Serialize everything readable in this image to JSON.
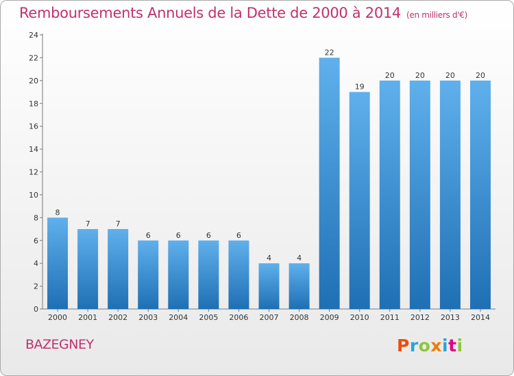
{
  "title": "Remboursements Annuels de la Dette de 2000 à 2014",
  "subtitle": "(en milliers d'€)",
  "place": "BAZEGNEY",
  "logo_text": "Proxiti",
  "chart_data": {
    "type": "bar",
    "title": "Remboursements Annuels de la Dette de 2000 à 2014",
    "subtitle": "(en milliers d'€)",
    "categories": [
      "2000",
      "2001",
      "2002",
      "2003",
      "2004",
      "2005",
      "2006",
      "2007",
      "2008",
      "2009",
      "2010",
      "2011",
      "2012",
      "2013",
      "2014"
    ],
    "values": [
      8,
      7,
      7,
      6,
      6,
      6,
      6,
      4,
      4,
      22,
      19,
      20,
      20,
      20,
      20
    ],
    "ylim": [
      0,
      24
    ],
    "yticks": [
      0,
      2,
      4,
      6,
      8,
      10,
      12,
      14,
      16,
      18,
      20,
      22,
      24
    ],
    "grid": false,
    "bar_color": "#3a8fd6"
  }
}
